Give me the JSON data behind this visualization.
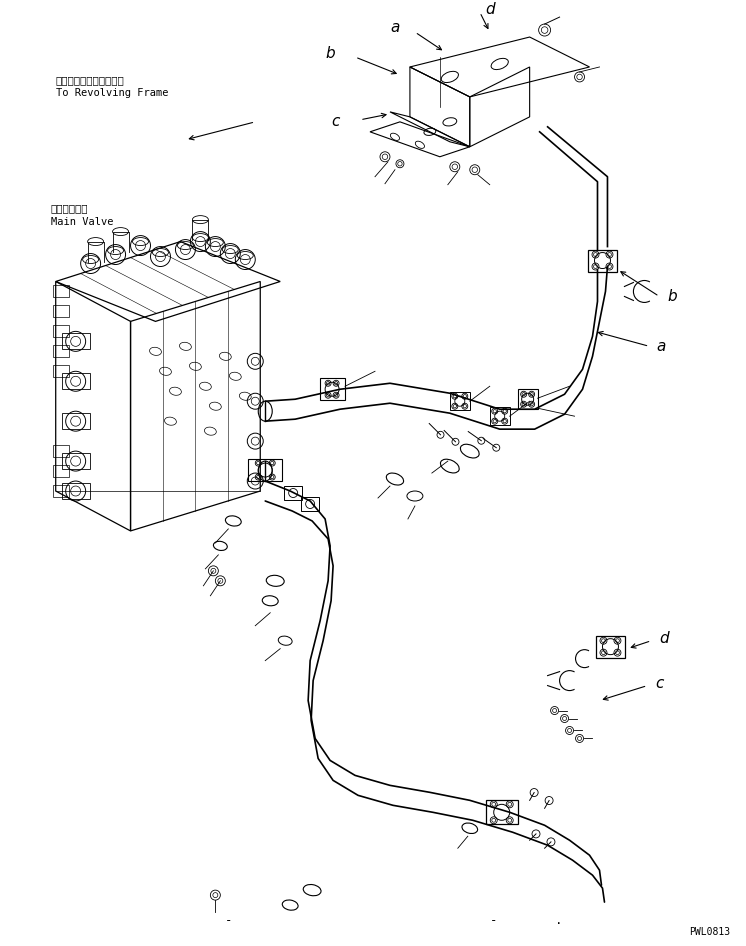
{
  "fig_width": 7.46,
  "fig_height": 9.46,
  "dpi": 100,
  "bg_color": "#ffffff",
  "lc": "#000000",
  "lw": 0.8,
  "watermark": "PWL0813",
  "label_revolving_jp": "レボルビングフレームへ",
  "label_revolving_en": "To Revolving Frame",
  "label_main_valve_jp": "メインバルブ",
  "label_main_valve_en": "Main Valve"
}
